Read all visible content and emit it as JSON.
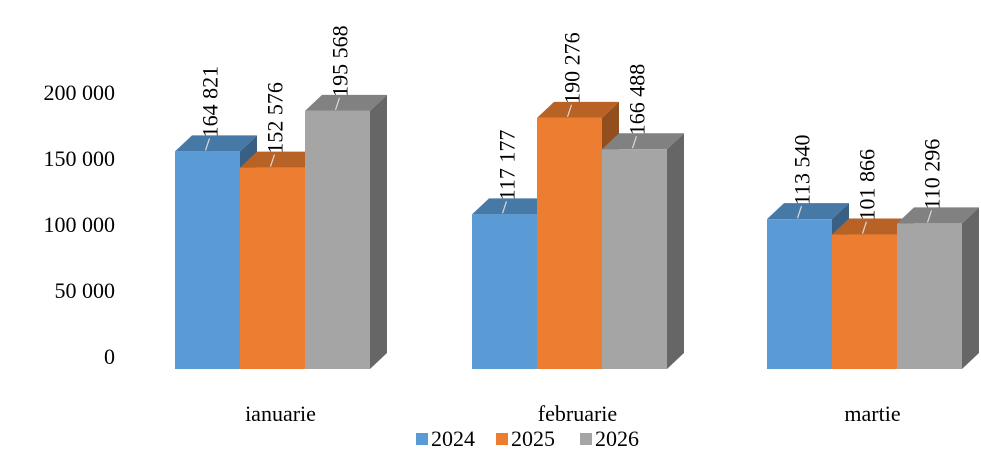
{
  "chart_data": {
    "type": "bar",
    "categories": [
      "ianuarie",
      "februarie",
      "martie"
    ],
    "series": [
      {
        "name": "2024",
        "color": "#5B9BD5",
        "values": [
          164821,
          117177,
          113540
        ]
      },
      {
        "name": "2025",
        "color": "#ED7D31",
        "values": [
          152576,
          190276,
          101866
        ]
      },
      {
        "name": "2026",
        "color": "#A5A5A5",
        "values": [
          195568,
          166488,
          110296
        ]
      }
    ],
    "y_ticks": [
      "0",
      "50 000",
      "100 000",
      "150 000",
      "200 000"
    ],
    "ylim": [
      0,
      200000
    ],
    "data_labels": [
      [
        "164 821",
        "152 576",
        "195 568"
      ],
      [
        "117 177",
        "190 276",
        "166 488"
      ],
      [
        "113 540",
        "101 866",
        "110 296"
      ]
    ],
    "legend_position": "bottom",
    "style": "3d-columns",
    "grid": false
  }
}
